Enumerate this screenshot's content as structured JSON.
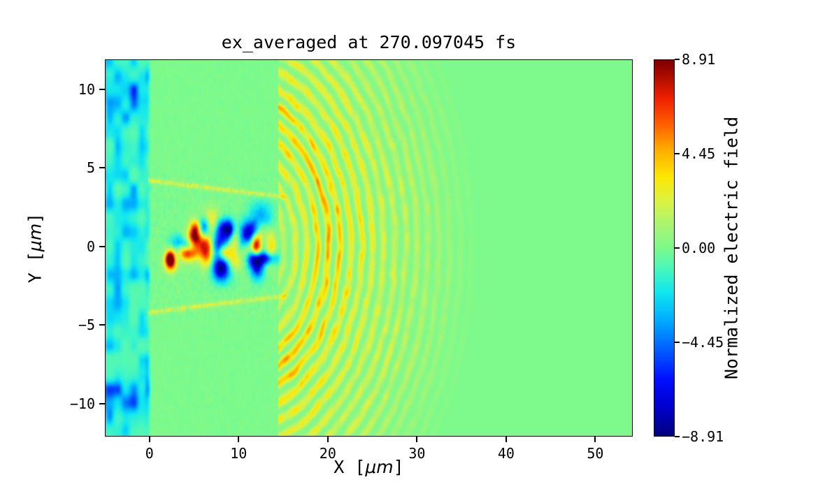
{
  "figure": {
    "background": "#ffffff"
  },
  "chart_data": {
    "type": "heatmap",
    "title": "ex_averaged at 270.097045 fs",
    "xlabel": {
      "pre": "X [",
      "unit": "μm",
      "post": "]"
    },
    "ylabel": {
      "pre": "Y [",
      "unit": "μm",
      "post": "]"
    },
    "xlim": [
      -5,
      54.2
    ],
    "ylim": [
      -12.1,
      11.9
    ],
    "x_ticks": [
      0,
      10,
      20,
      30,
      40,
      50
    ],
    "x_tick_labels": [
      "0",
      "10",
      "20",
      "30",
      "40",
      "50"
    ],
    "y_ticks": [
      10,
      5,
      0,
      -5,
      -10
    ],
    "y_tick_labels": [
      "10",
      "5",
      "0",
      "−5",
      "−10"
    ],
    "grid": false,
    "colorbar": {
      "label": "Normalized electric field",
      "vmin": -8.91,
      "vmax": 8.91,
      "ticks": [
        8.91,
        4.45,
        0,
        -4.45,
        -8.91
      ],
      "tick_labels": [
        "8.91",
        "4.45",
        "0.00",
        "−4.45",
        "−8.91"
      ],
      "position": "right"
    },
    "colormap": {
      "name": "jet",
      "stops": [
        [
          0.0,
          "#000080"
        ],
        [
          0.08,
          "#0000d0"
        ],
        [
          0.15,
          "#0010ff"
        ],
        [
          0.23,
          "#0060ff"
        ],
        [
          0.31,
          "#00b0ff"
        ],
        [
          0.38,
          "#10e6f0"
        ],
        [
          0.44,
          "#45f7c0"
        ],
        [
          0.5,
          "#7dfa8b"
        ],
        [
          0.56,
          "#a8f573"
        ],
        [
          0.63,
          "#dff23f"
        ],
        [
          0.69,
          "#fce803"
        ],
        [
          0.76,
          "#ffb000"
        ],
        [
          0.83,
          "#ff6000"
        ],
        [
          0.9,
          "#f02000"
        ],
        [
          1.0,
          "#7f0000"
        ]
      ]
    },
    "field_model": {
      "seed": 1337,
      "background_value": 0,
      "left_band": {
        "x_edge": 0.15,
        "amp": -2.0,
        "corner_y": 9.8,
        "corner_amp": -2.3
      },
      "channel": {
        "x_start": 0.0,
        "x_end": 15.3,
        "half_width": 3.15,
        "edge_slope": 1.05,
        "speckle_amp": 0.6,
        "edge_amp": 2.6
      },
      "turbulence": {
        "count": 32,
        "x_min": 2.0,
        "x_max": 15.2,
        "y_spread": 2.2,
        "amp_min": 3.0,
        "amp_max": 8.9,
        "sigma_min": 0.45,
        "sigma_max": 1.25,
        "key_blobs": [
          [
            8.0,
            -1.4,
            -8.9,
            1.05,
            0.8
          ],
          [
            4.9,
            0.4,
            7.5,
            0.8,
            0.65
          ],
          [
            13.5,
            -0.1,
            8.0,
            0.75,
            0.9
          ],
          [
            6.1,
            1.3,
            -6.5,
            0.7,
            0.6
          ]
        ]
      },
      "wavefront": {
        "x_start": 14.4,
        "center_x": 10.0,
        "x_scale": 1.18,
        "wavelength": 1.05,
        "r_inner": 4.0,
        "r_core": 11.5,
        "r_max": 23.0,
        "amp": 2.9,
        "red_boost_r": 8.8,
        "red_boost": 0.45
      }
    }
  }
}
